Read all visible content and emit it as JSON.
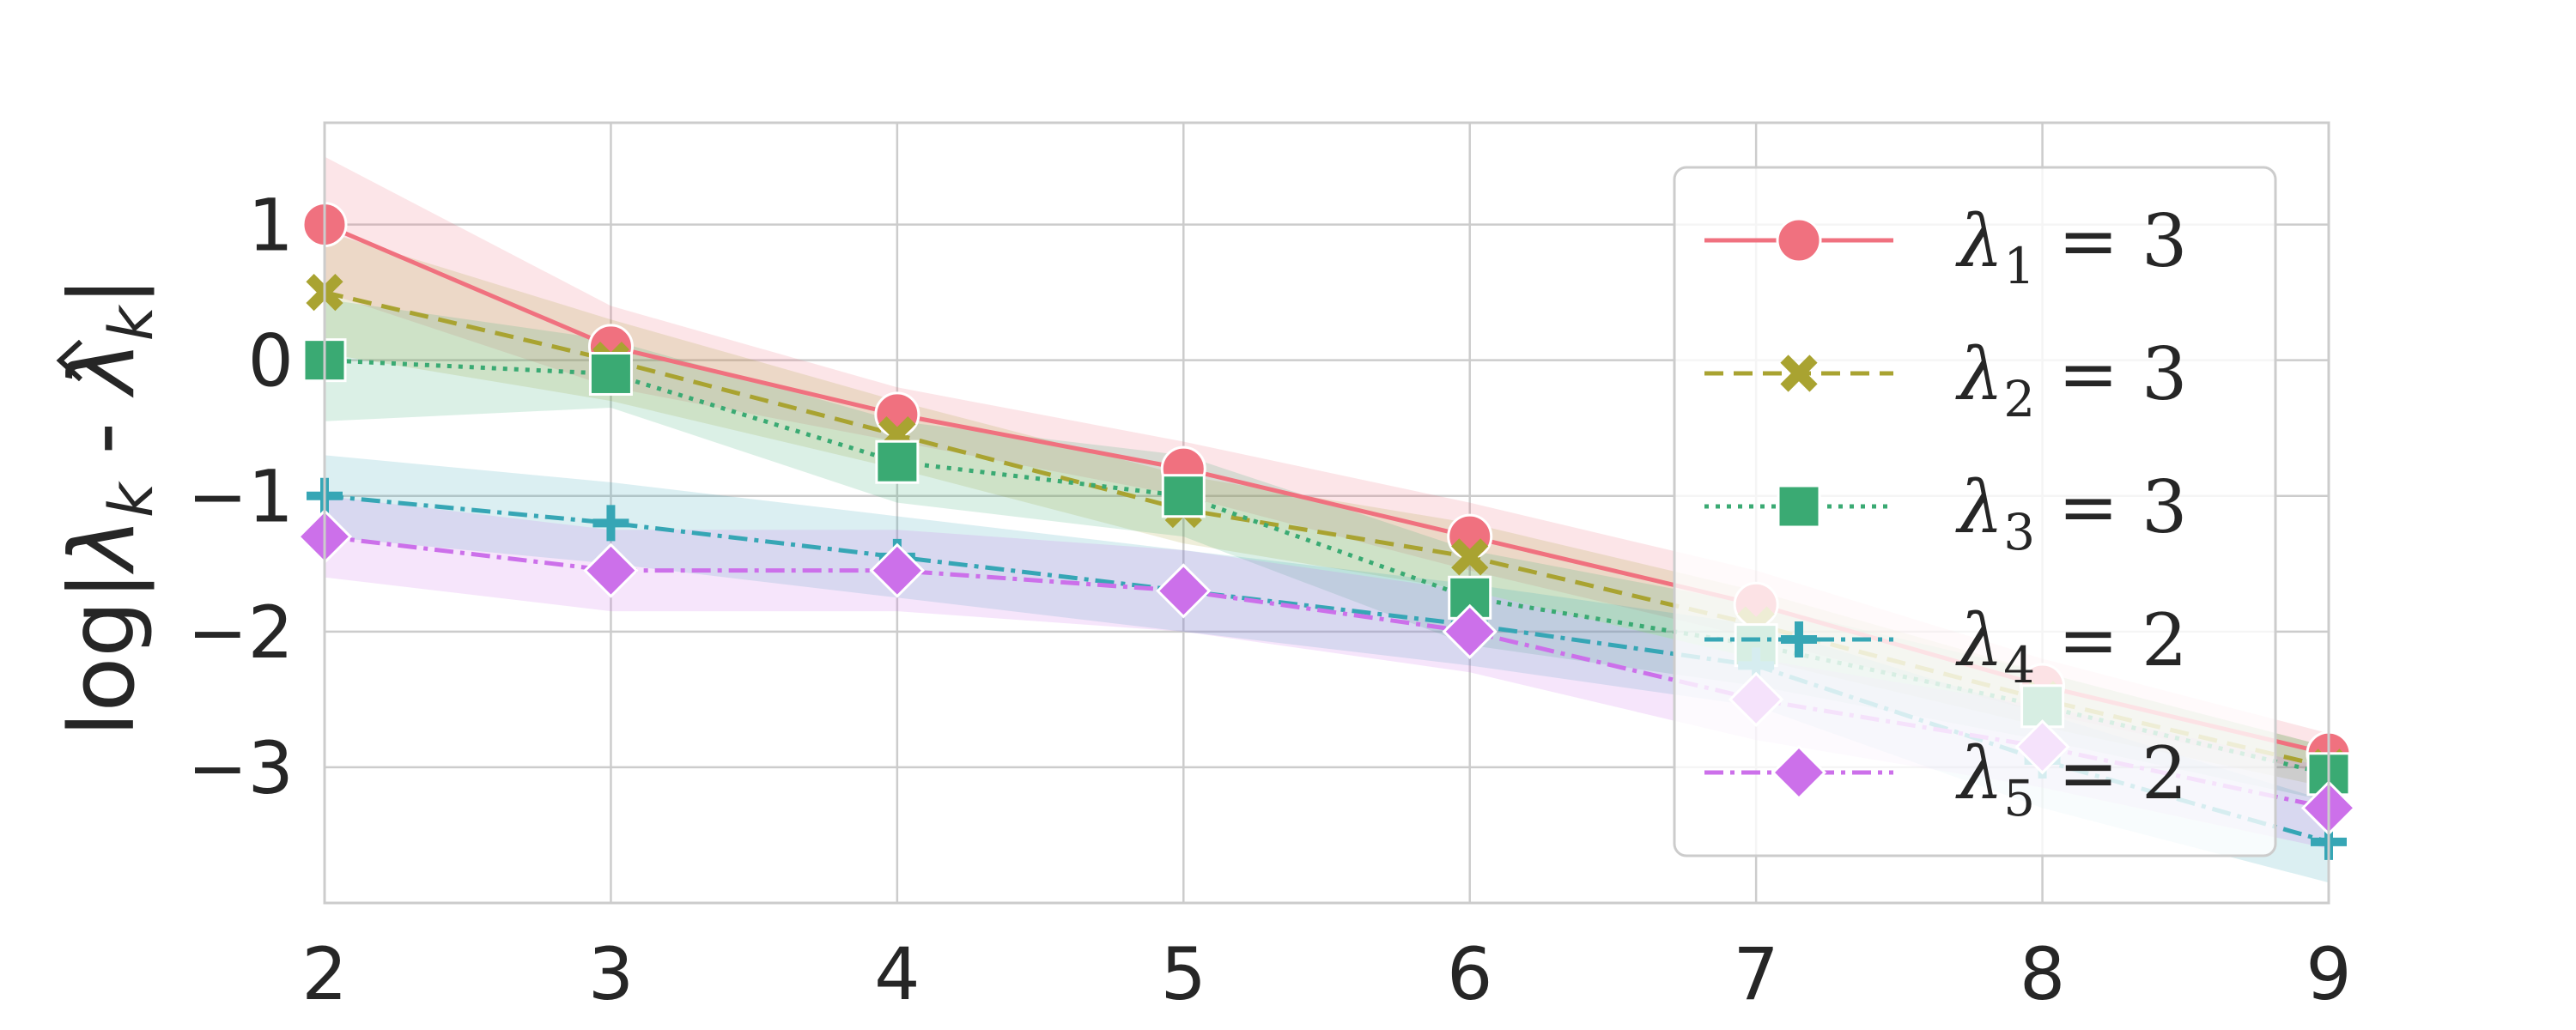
{
  "chart_data": {
    "type": "line",
    "title": "",
    "xlabel": "",
    "ylabel": {
      "prefix": "log|",
      "hat_symbol": "λ",
      "subscript": "k",
      "middle": " - ",
      "symbol": "λ",
      "subscript2": "k",
      "suffix": "|"
    },
    "xlim": [
      2,
      9
    ],
    "ylim": [
      -4.0,
      1.75
    ],
    "xticks": [
      2,
      3,
      4,
      5,
      6,
      7,
      8,
      9
    ],
    "yticks": [
      1,
      0,
      -1,
      -2,
      -3
    ],
    "ytick_labels": [
      "1",
      "0",
      "−1",
      "−2",
      "−3"
    ],
    "grid": true,
    "legend_position": "upper-right",
    "x": [
      2,
      3,
      4,
      5,
      6,
      7,
      8,
      9
    ],
    "series": [
      {
        "symbol": "λ",
        "sub": "1",
        "rest": " = 3",
        "color": "#f0717f",
        "dash": "none",
        "marker": "circle",
        "values": [
          1.0,
          0.1,
          -0.4,
          -0.8,
          -1.3,
          -1.8,
          -2.4,
          -2.9
        ],
        "band_width": [
          0.5,
          0.3,
          0.2,
          0.2,
          0.25,
          0.25,
          0.2,
          0.15
        ]
      },
      {
        "symbol": "λ",
        "sub": "2",
        "rest": " = 3",
        "color": "#a9a331",
        "dash": "22,12",
        "marker": "x",
        "values": [
          0.5,
          0.0,
          -0.55,
          -1.1,
          -1.45,
          -1.95,
          -2.5,
          -3.0
        ],
        "band_width": [
          0.45,
          0.3,
          0.25,
          0.25,
          0.25,
          0.25,
          0.2,
          0.15
        ]
      },
      {
        "symbol": "λ",
        "sub": "3",
        "rest": " = 3",
        "color": "#3aaa73",
        "dash": "5,8",
        "marker": "square",
        "values": [
          0.0,
          -0.1,
          -0.75,
          -1.0,
          -1.75,
          -2.1,
          -2.55,
          -3.05
        ],
        "band_width": [
          0.45,
          0.25,
          0.3,
          0.3,
          0.35,
          0.3,
          0.25,
          0.2
        ]
      },
      {
        "symbol": "λ",
        "sub": "4",
        "rest": " = 2",
        "color": "#36a6b5",
        "dash": "22,8,5,8",
        "marker": "plus",
        "values": [
          -1.0,
          -1.2,
          -1.45,
          -1.7,
          -1.95,
          -2.25,
          -2.95,
          -3.55
        ],
        "band_width": [
          0.3,
          0.3,
          0.3,
          0.3,
          0.3,
          0.3,
          0.35,
          0.3
        ]
      },
      {
        "symbol": "λ",
        "sub": "5",
        "rest": " = 2",
        "color": "#cc70ea",
        "dash": "22,8,5,8",
        "marker": "diamond",
        "values": [
          -1.3,
          -1.55,
          -1.55,
          -1.7,
          -2.0,
          -2.5,
          -2.85,
          -3.3
        ],
        "band_width": [
          0.3,
          0.3,
          0.3,
          0.3,
          0.3,
          0.3,
          0.3,
          0.3
        ]
      }
    ]
  }
}
